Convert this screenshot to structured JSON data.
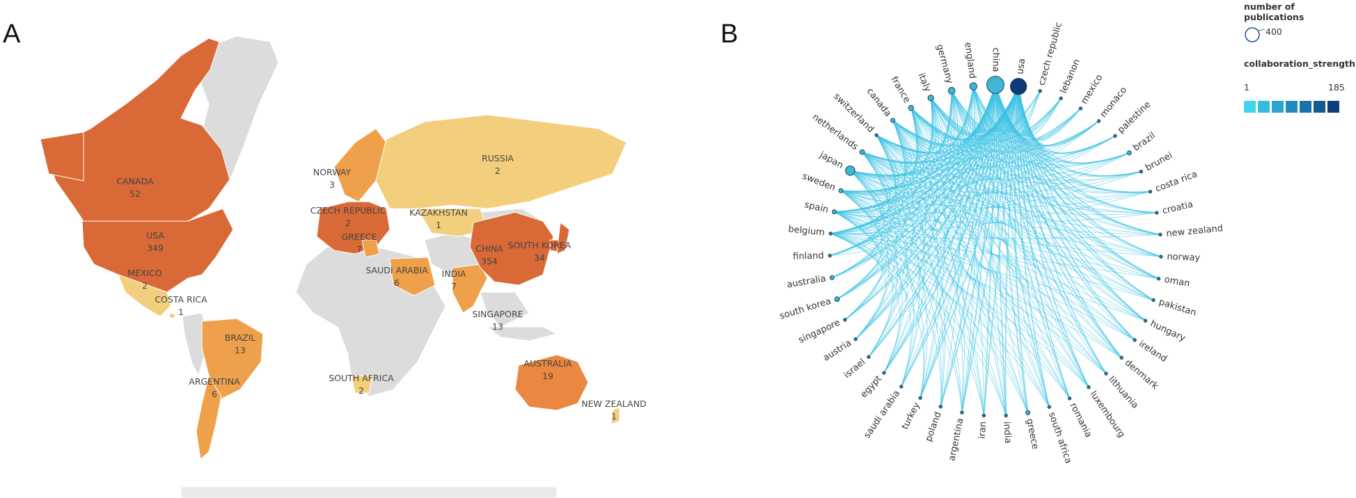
{
  "panels": {
    "a": "A",
    "b": "B"
  },
  "colors": {
    "land_gray": "#dcdcdc",
    "map_low": "#f3cf7d",
    "map_mid": "#efa04a",
    "map_high": "#d96a38",
    "node_fill": "#3fb6d3",
    "node_dark": "#0d3a7a",
    "edge": "#3cc3e4"
  },
  "chart_data": [
    {
      "type": "choropleth-map",
      "title": "",
      "regions": [
        {
          "label": "CANADA",
          "value": "52"
        },
        {
          "label": "USA",
          "value": "349"
        },
        {
          "label": "MEXICO",
          "value": "2"
        },
        {
          "label": "COSTA RICA",
          "value": "1"
        },
        {
          "label": "BRAZIL",
          "value": "13"
        },
        {
          "label": "ARGENTINA",
          "value": "6"
        },
        {
          "label": "NORWAY",
          "value": "3"
        },
        {
          "label": "RUSSIA",
          "value": "2"
        },
        {
          "label": "CZECH REPUBLIC",
          "value": "2"
        },
        {
          "label": "GREECE",
          "value": "7"
        },
        {
          "label": "KAZAKHSTAN",
          "value": "1"
        },
        {
          "label": "SAUDI ARABIA",
          "value": "6"
        },
        {
          "label": "INDIA",
          "value": "7"
        },
        {
          "label": "CHINA",
          "value": "354"
        },
        {
          "label": "SOUTH KOREA",
          "value": "34"
        },
        {
          "label": "SINGAPORE",
          "value": "13"
        },
        {
          "label": "SOUTH AFRICA",
          "value": "2"
        },
        {
          "label": "AUSTRALIA",
          "value": "19"
        },
        {
          "label": "NEW ZEALAND",
          "value": "1"
        }
      ]
    },
    {
      "type": "chord-network",
      "title": "",
      "nodes": [
        "usa",
        "czech republic",
        "lebanon",
        "mexico",
        "monaco",
        "palestine",
        "brazil",
        "brunei",
        "costa rica",
        "croatia",
        "new zealand",
        "norway",
        "oman",
        "pakistan",
        "hungary",
        "ireland",
        "denmark",
        "lithuania",
        "luxembourg",
        "romania",
        "south africa",
        "greece",
        "india",
        "iran",
        "argentina",
        "poland",
        "turkey",
        "saudi arabia",
        "egypt",
        "israel",
        "austria",
        "singapore",
        "south korea",
        "australia",
        "finland",
        "belgium",
        "spain",
        "sweden",
        "japan",
        "netherlands",
        "switzerland",
        "canada",
        "france",
        "italy",
        "germany",
        "england",
        "china"
      ],
      "node_sizes": {
        "usa": 354,
        "china": 400,
        "japan": 120,
        "england": 70,
        "germany": 60,
        "italy": 45,
        "france": 35,
        "netherlands": 30,
        "south korea": 30,
        "sweden": 20,
        "spain": 20,
        "brazil": 15,
        "greece": 15,
        "canada": 15,
        "australia": 10
      },
      "legend": {
        "size_title": "number of publications",
        "size_value": "400",
        "color_title": "collaboration_strength",
        "color_min": "1",
        "color_max": "185",
        "color_ramp": [
          "#41d4ee",
          "#34bde0",
          "#29a5d0",
          "#208cbd",
          "#1873aa",
          "#125a94",
          "#0c3f7a"
        ]
      }
    }
  ]
}
